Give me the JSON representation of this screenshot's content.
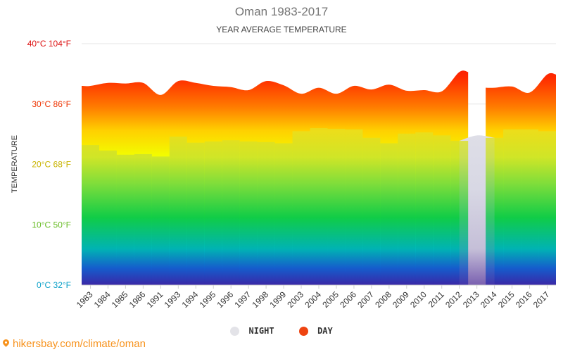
{
  "chart_data": {
    "type": "area",
    "title": "Oman 1983-2017",
    "subtitle": "YEAR AVERAGE TEMPERATURE",
    "ylabel": "TEMPERATURE",
    "ylim": [
      0,
      40
    ],
    "yticks": [
      {
        "value": 0,
        "label": "0°C 32°F",
        "color": "#0aa0c8"
      },
      {
        "value": 10,
        "label": "10°C 50°F",
        "color": "#66bb22"
      },
      {
        "value": 20,
        "label": "20°C 68°F",
        "color": "#c9b400"
      },
      {
        "value": 30,
        "label": "30°C 86°F",
        "color": "#ee3300"
      },
      {
        "value": 40,
        "label": "40°C 104°F",
        "color": "#dd1111"
      }
    ],
    "categories": [
      "1983",
      "1984",
      "1985",
      "1986",
      "1991",
      "1993",
      "1994",
      "1995",
      "1996",
      "1997",
      "1998",
      "1999",
      "2003",
      "2004",
      "2005",
      "2006",
      "2007",
      "2008",
      "2009",
      "2010",
      "2011",
      "2012",
      "2013",
      "2014",
      "2015",
      "2016",
      "2017"
    ],
    "series": [
      {
        "name": "NIGHT",
        "color": "#e3e3e8",
        "values": [
          23.2,
          22.3,
          21.6,
          21.7,
          21.3,
          24.6,
          23.6,
          23.8,
          24.0,
          23.8,
          23.7,
          23.5,
          25.5,
          26.0,
          25.9,
          25.8,
          24.4,
          23.5,
          25.1,
          25.3,
          24.8,
          23.9,
          24.8,
          24.4,
          25.8,
          25.8,
          25.5
        ]
      },
      {
        "name": "DAY",
        "color": "#ee4411",
        "values": [
          33.0,
          33.5,
          33.4,
          33.5,
          31.5,
          33.8,
          33.5,
          33.0,
          32.8,
          32.3,
          33.8,
          33.1,
          31.7,
          32.7,
          31.7,
          33.0,
          32.4,
          33.2,
          32.2,
          32.3,
          32.1,
          35.3,
          null,
          32.7,
          32.9,
          31.9,
          34.9
        ]
      }
    ]
  },
  "legend": {
    "night": "NIGHT",
    "day": "DAY"
  },
  "footer": {
    "text": "hikersbay.com/climate/oman"
  }
}
